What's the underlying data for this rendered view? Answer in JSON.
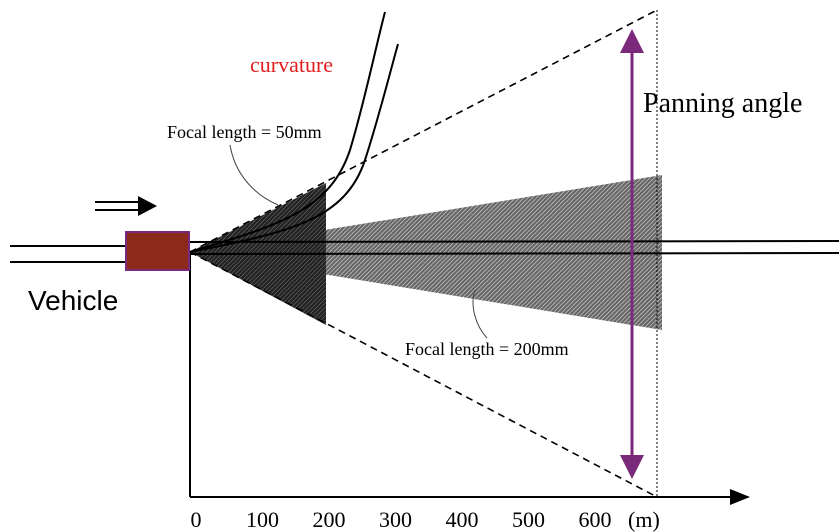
{
  "labels": {
    "curvature": "curvature",
    "panning": "Panning angle",
    "focal_50": "Focal length = 50mm",
    "focal_200": "Focal length = 200mm",
    "vehicle": "Vehicle"
  },
  "axis": {
    "ticks": [
      "0",
      "100",
      "200",
      "300",
      "400",
      "500",
      "600"
    ],
    "unit": "(m)"
  }
}
